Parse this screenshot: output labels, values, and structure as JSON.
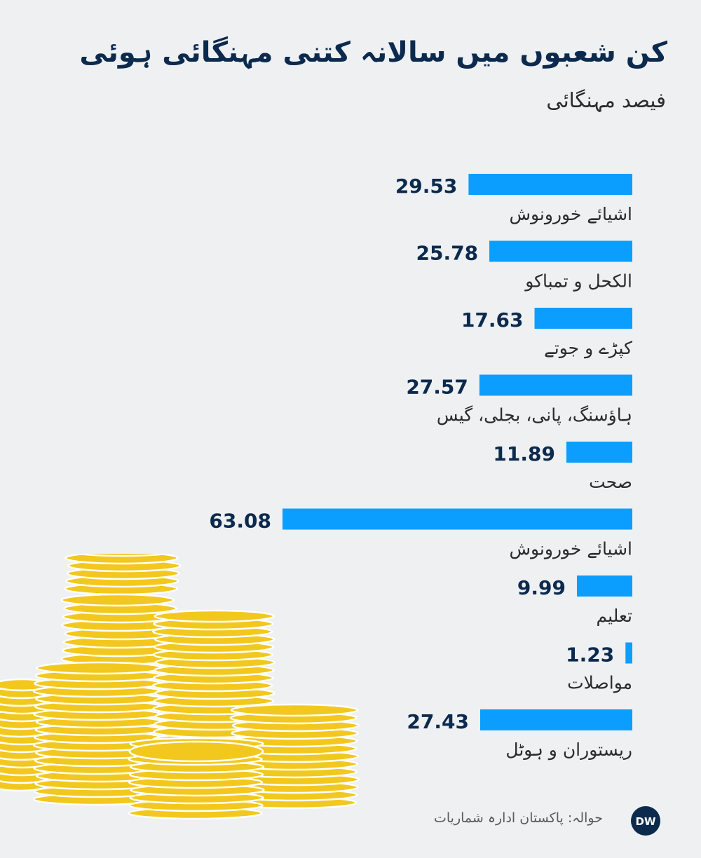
{
  "header": {
    "title": "کن شعبوں میں سالانہ کتنی مہنگائی ہوئی",
    "subtitle": "فیصد مہنگائی"
  },
  "footer": {
    "source": "حوالہ: پاکستان ادارہ شماریات",
    "logo_text": "DW"
  },
  "colors": {
    "bar": "#0b9eff",
    "value_text": "#0c2a4d",
    "label_text": "#2b2b2b",
    "background": "#eef0f2",
    "coin": "#f2c81e",
    "coin_edge": "#ffffff"
  },
  "chart_data": {
    "type": "bar",
    "orientation": "horizontal",
    "title": "کن شعبوں میں سالانہ کتنی مہنگائی ہوئی",
    "subtitle": "فیصد مہنگائی",
    "categories": [
      "اشیائے خورونوش",
      "الکحل و تمباکو",
      "کپڑے و جوتے",
      "ہاؤسنگ، پانی، بجلی، گیس",
      "صحت",
      "اشیائے خورونوش",
      "تعلیم",
      "مواصلات",
      "ریستوران و ہوٹل"
    ],
    "values": [
      29.53,
      25.78,
      17.63,
      27.57,
      11.89,
      63.08,
      9.99,
      1.23,
      27.43
    ],
    "value_labels": [
      "29.53",
      "25.78",
      "17.63",
      "27.57",
      "11.89",
      "63.08",
      "9.99",
      "1.23",
      "27.43"
    ],
    "xlim": [
      0,
      63.08
    ],
    "grid": false,
    "legend": "none"
  }
}
